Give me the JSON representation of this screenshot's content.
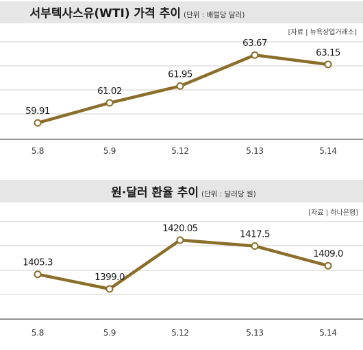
{
  "chart_data": [
    {
      "type": "line",
      "title": "서부텍사스유(WTI) 가격 추이",
      "subtitle": "(단위 : 배럴당 달러)",
      "source": "[자료 | 뉴욕상업거래소]",
      "categories": [
        "5.8",
        "5.9",
        "5.12",
        "5.13",
        "5.14"
      ],
      "values": [
        59.91,
        61.02,
        61.95,
        63.67,
        63.15
      ],
      "value_labels": [
        "59.91",
        "61.02",
        "61.95",
        "63.67",
        "63.15"
      ],
      "ylim": [
        59.0,
        64.4
      ],
      "grid": true,
      "line_color": "#8a6e2a",
      "marker_fill": "#ffffff"
    },
    {
      "type": "line",
      "title": "원·달러 환율 추이",
      "subtitle": "(단위 : 달러당 원)",
      "source": "[자료 | 하나은행]",
      "categories": [
        "5.8",
        "5.9",
        "5.12",
        "5.13",
        "5.14"
      ],
      "values": [
        1405.3,
        1399.0,
        1420.05,
        1417.5,
        1409.0
      ],
      "value_labels": [
        "1405.3",
        "1399.0",
        "1420.05",
        "1417.5",
        "1409.0"
      ],
      "ylim": [
        1386,
        1428
      ],
      "grid": true,
      "line_color": "#8a6e2a",
      "marker_fill": "#ffffff"
    }
  ]
}
